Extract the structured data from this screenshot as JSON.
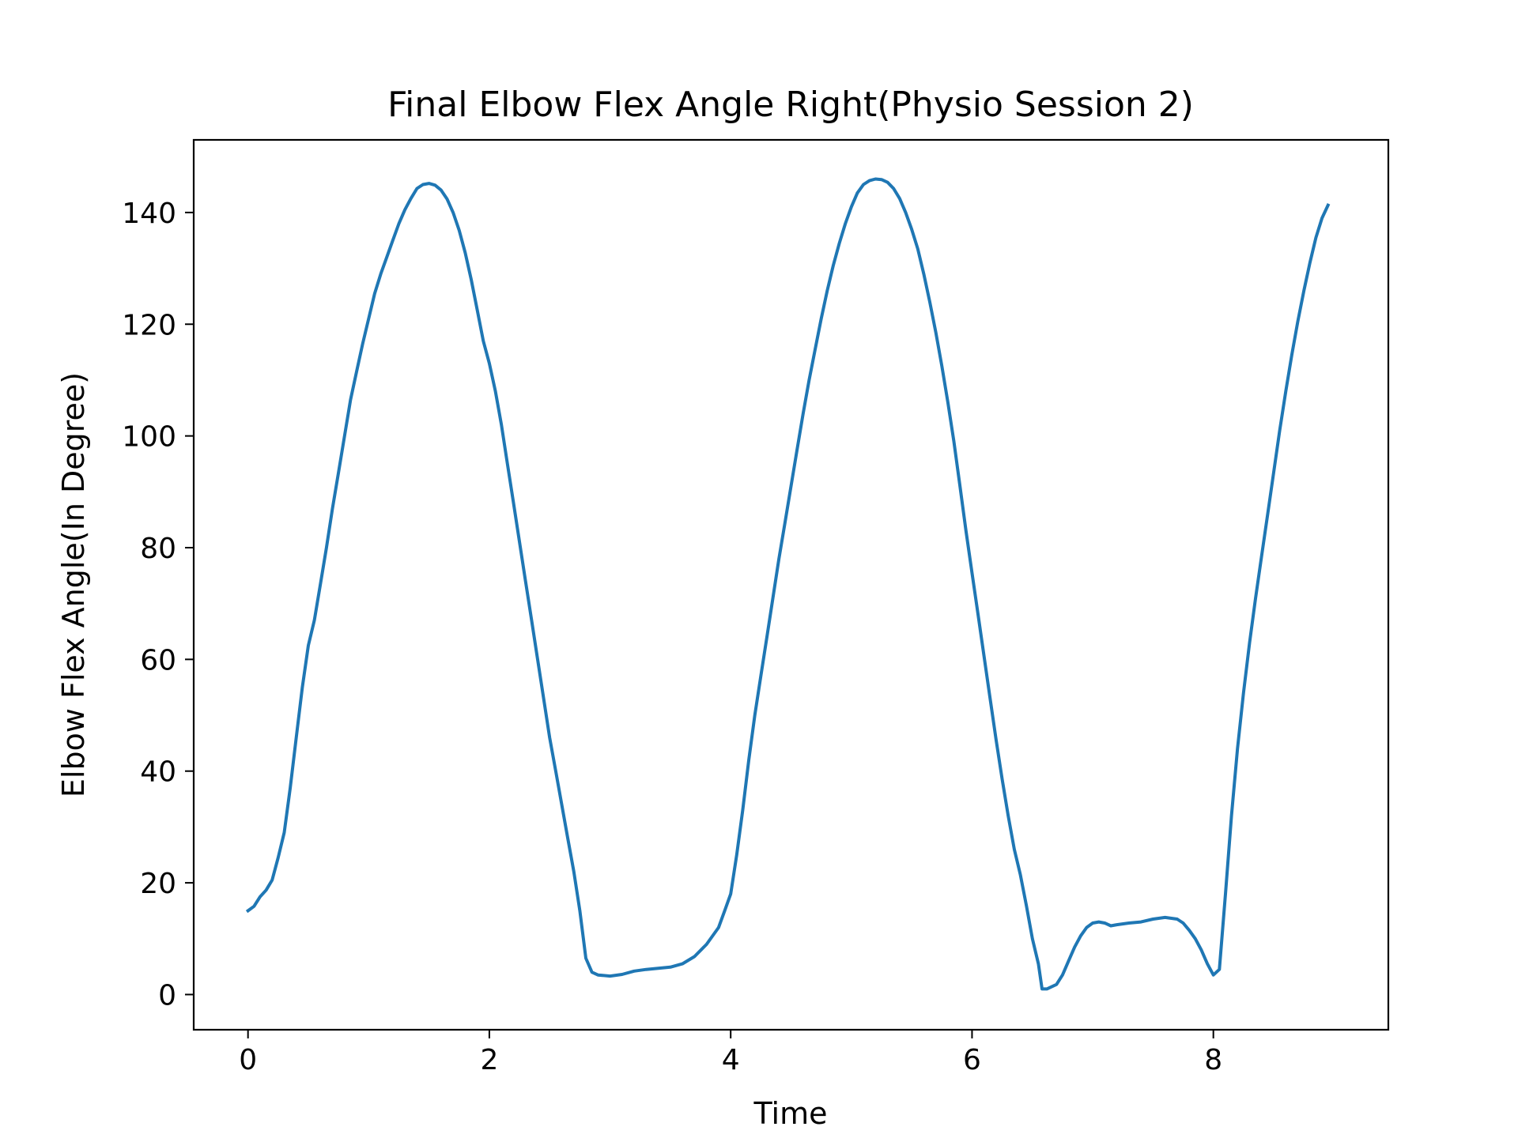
{
  "chart_data": {
    "type": "line",
    "title": "Final Elbow Flex Angle Right(Physio Session 2)",
    "xlabel": "Time",
    "ylabel": "Elbow Flex Angle(In Degree)",
    "xlim": [
      -0.45,
      9.45
    ],
    "ylim": [
      -6.3,
      153.0
    ],
    "x_ticks": [
      0,
      2,
      4,
      6,
      8
    ],
    "y_ticks": [
      0,
      20,
      40,
      60,
      80,
      100,
      120,
      140
    ],
    "grid": false,
    "legend": "none",
    "series": [
      {
        "color": "#1f77b4",
        "points": [
          [
            0.0,
            15.0
          ],
          [
            0.05,
            15.8
          ],
          [
            0.1,
            17.5
          ],
          [
            0.15,
            18.7
          ],
          [
            0.2,
            20.5
          ],
          [
            0.25,
            24.5
          ],
          [
            0.3,
            29.0
          ],
          [
            0.35,
            37.0
          ],
          [
            0.4,
            46.0
          ],
          [
            0.45,
            55.0
          ],
          [
            0.5,
            62.5
          ],
          [
            0.55,
            67.0
          ],
          [
            0.6,
            73.5
          ],
          [
            0.65,
            80.0
          ],
          [
            0.7,
            87.0
          ],
          [
            0.75,
            93.5
          ],
          [
            0.8,
            100.0
          ],
          [
            0.85,
            106.5
          ],
          [
            0.9,
            111.5
          ],
          [
            0.95,
            116.5
          ],
          [
            1.0,
            121.0
          ],
          [
            1.05,
            125.5
          ],
          [
            1.1,
            129.0
          ],
          [
            1.15,
            132.0
          ],
          [
            1.2,
            135.0
          ],
          [
            1.25,
            138.0
          ],
          [
            1.3,
            140.5
          ],
          [
            1.35,
            142.5
          ],
          [
            1.4,
            144.3
          ],
          [
            1.45,
            145.0
          ],
          [
            1.5,
            145.2
          ],
          [
            1.55,
            144.9
          ],
          [
            1.6,
            144.0
          ],
          [
            1.65,
            142.4
          ],
          [
            1.7,
            140.0
          ],
          [
            1.75,
            136.8
          ],
          [
            1.8,
            132.8
          ],
          [
            1.85,
            128.0
          ],
          [
            1.9,
            122.5
          ],
          [
            1.95,
            117.0
          ],
          [
            2.0,
            113.0
          ],
          [
            2.05,
            108.0
          ],
          [
            2.1,
            102.0
          ],
          [
            2.15,
            95.0
          ],
          [
            2.2,
            88.0
          ],
          [
            2.25,
            81.0
          ],
          [
            2.3,
            74.0
          ],
          [
            2.35,
            67.0
          ],
          [
            2.4,
            60.0
          ],
          [
            2.45,
            53.0
          ],
          [
            2.5,
            46.0
          ],
          [
            2.55,
            40.0
          ],
          [
            2.6,
            34.0
          ],
          [
            2.65,
            28.0
          ],
          [
            2.7,
            22.0
          ],
          [
            2.75,
            15.0
          ],
          [
            2.8,
            6.5
          ],
          [
            2.85,
            4.0
          ],
          [
            2.9,
            3.5
          ],
          [
            2.95,
            3.4
          ],
          [
            3.0,
            3.3
          ],
          [
            3.1,
            3.6
          ],
          [
            3.2,
            4.2
          ],
          [
            3.3,
            4.5
          ],
          [
            3.4,
            4.7
          ],
          [
            3.5,
            4.9
          ],
          [
            3.6,
            5.5
          ],
          [
            3.7,
            6.8
          ],
          [
            3.8,
            9.0
          ],
          [
            3.9,
            12.0
          ],
          [
            3.95,
            15.0
          ],
          [
            4.0,
            18.0
          ],
          [
            4.05,
            25.0
          ],
          [
            4.1,
            33.0
          ],
          [
            4.15,
            42.0
          ],
          [
            4.2,
            50.0
          ],
          [
            4.25,
            57.0
          ],
          [
            4.3,
            64.0
          ],
          [
            4.35,
            71.0
          ],
          [
            4.4,
            78.0
          ],
          [
            4.45,
            84.5
          ],
          [
            4.5,
            91.0
          ],
          [
            4.55,
            97.5
          ],
          [
            4.6,
            104.0
          ],
          [
            4.65,
            110.0
          ],
          [
            4.7,
            115.5
          ],
          [
            4.75,
            121.0
          ],
          [
            4.8,
            126.0
          ],
          [
            4.85,
            130.5
          ],
          [
            4.9,
            134.5
          ],
          [
            4.95,
            138.0
          ],
          [
            5.0,
            141.0
          ],
          [
            5.05,
            143.5
          ],
          [
            5.1,
            145.0
          ],
          [
            5.15,
            145.7
          ],
          [
            5.2,
            146.0
          ],
          [
            5.25,
            145.9
          ],
          [
            5.3,
            145.4
          ],
          [
            5.35,
            144.3
          ],
          [
            5.4,
            142.5
          ],
          [
            5.45,
            140.0
          ],
          [
            5.5,
            137.0
          ],
          [
            5.55,
            133.5
          ],
          [
            5.6,
            129.0
          ],
          [
            5.65,
            124.0
          ],
          [
            5.7,
            118.5
          ],
          [
            5.75,
            112.5
          ],
          [
            5.8,
            106.0
          ],
          [
            5.85,
            99.0
          ],
          [
            5.9,
            91.0
          ],
          [
            5.95,
            83.0
          ],
          [
            6.0,
            75.5
          ],
          [
            6.05,
            68.0
          ],
          [
            6.1,
            60.5
          ],
          [
            6.15,
            53.0
          ],
          [
            6.2,
            45.5
          ],
          [
            6.25,
            38.5
          ],
          [
            6.3,
            32.0
          ],
          [
            6.35,
            26.0
          ],
          [
            6.4,
            21.5
          ],
          [
            6.45,
            16.0
          ],
          [
            6.5,
            10.0
          ],
          [
            6.55,
            5.5
          ],
          [
            6.58,
            1.0
          ],
          [
            6.62,
            1.0
          ],
          [
            6.7,
            1.8
          ],
          [
            6.75,
            3.5
          ],
          [
            6.8,
            6.0
          ],
          [
            6.85,
            8.5
          ],
          [
            6.9,
            10.5
          ],
          [
            6.95,
            12.0
          ],
          [
            7.0,
            12.8
          ],
          [
            7.05,
            13.0
          ],
          [
            7.1,
            12.8
          ],
          [
            7.15,
            12.3
          ],
          [
            7.2,
            12.5
          ],
          [
            7.3,
            12.8
          ],
          [
            7.4,
            13.0
          ],
          [
            7.5,
            13.5
          ],
          [
            7.6,
            13.8
          ],
          [
            7.7,
            13.5
          ],
          [
            7.75,
            12.8
          ],
          [
            7.8,
            11.5
          ],
          [
            7.85,
            10.0
          ],
          [
            7.9,
            8.0
          ],
          [
            7.95,
            5.5
          ],
          [
            8.0,
            3.5
          ],
          [
            8.05,
            4.5
          ],
          [
            8.1,
            18.0
          ],
          [
            8.15,
            32.0
          ],
          [
            8.2,
            44.0
          ],
          [
            8.25,
            54.0
          ],
          [
            8.3,
            63.0
          ],
          [
            8.35,
            71.0
          ],
          [
            8.4,
            78.5
          ],
          [
            8.45,
            86.0
          ],
          [
            8.5,
            93.5
          ],
          [
            8.55,
            101.0
          ],
          [
            8.6,
            108.0
          ],
          [
            8.65,
            114.5
          ],
          [
            8.7,
            120.5
          ],
          [
            8.75,
            126.0
          ],
          [
            8.8,
            131.0
          ],
          [
            8.85,
            135.5
          ],
          [
            8.9,
            139.0
          ],
          [
            8.95,
            141.3
          ]
        ]
      }
    ]
  }
}
